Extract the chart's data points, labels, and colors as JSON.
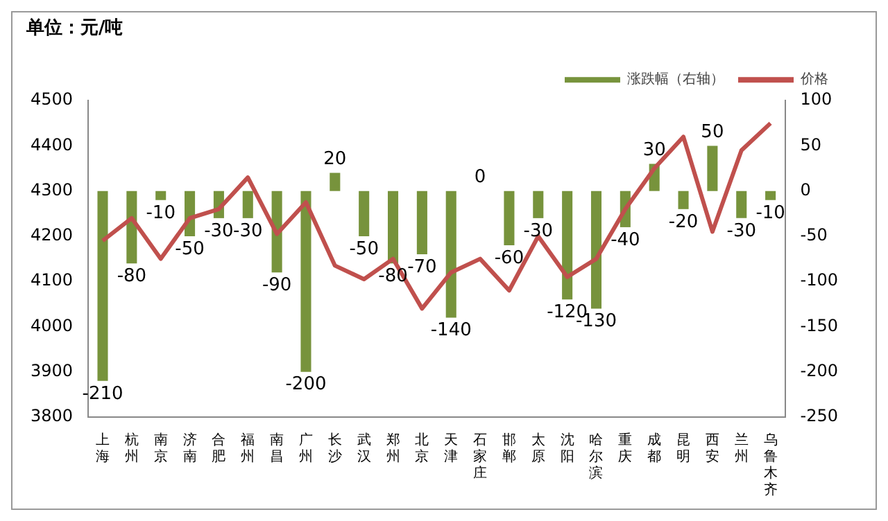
{
  "chart_data": {
    "type": "bar",
    "title": "单位：元/吨",
    "categories": [
      "上海",
      "杭州",
      "南京",
      "济南",
      "合肥",
      "福州",
      "南昌",
      "广州",
      "长沙",
      "武汉",
      "郑州",
      "北京",
      "天津",
      "石家庄",
      "邯郸",
      "太原",
      "沈阳",
      "哈尔滨",
      "重庆",
      "成都",
      "昆明",
      "西安",
      "兰州",
      "乌鲁木齐"
    ],
    "series": [
      {
        "name": "涨跌幅（右轴）",
        "axis": "y2",
        "color": "#77933c",
        "values": [
          -210,
          -80,
          -10,
          -50,
          -30,
          -30,
          -90,
          -200,
          20,
          -50,
          -80,
          -70,
          -140,
          0,
          -60,
          -30,
          -120,
          -130,
          -40,
          30,
          -20,
          50,
          -30,
          -10
        ],
        "value_labels": [
          "-210",
          "-80",
          "-10",
          "-50",
          "-30",
          "-30",
          "-90",
          "-200",
          "20",
          "-50",
          "-80",
          "-70",
          "-140",
          "0",
          "-60",
          "-30",
          "-120",
          "-130",
          "-40",
          "30",
          "-20",
          "50",
          "-30",
          "-10"
        ]
      },
      {
        "name": "价格",
        "type": "line",
        "color": "#c0504d",
        "values": [
          4190,
          4240,
          4150,
          4240,
          4260,
          4330,
          4205,
          4275,
          4135,
          4105,
          4150,
          4040,
          4120,
          4150,
          4080,
          4200,
          4110,
          4150,
          4260,
          4350,
          4420,
          4210,
          4390,
          4450
        ]
      }
    ],
    "ylim": [
      3800,
      4500
    ],
    "yticks": [
      3800,
      3900,
      4000,
      4100,
      4200,
      4300,
      4400,
      4500
    ],
    "y2lim": [
      -250,
      100
    ],
    "y2ticks": [
      -250,
      -200,
      -150,
      -100,
      -50,
      0,
      50,
      100
    ],
    "legend": "top",
    "grid": false,
    "marker": "none"
  }
}
